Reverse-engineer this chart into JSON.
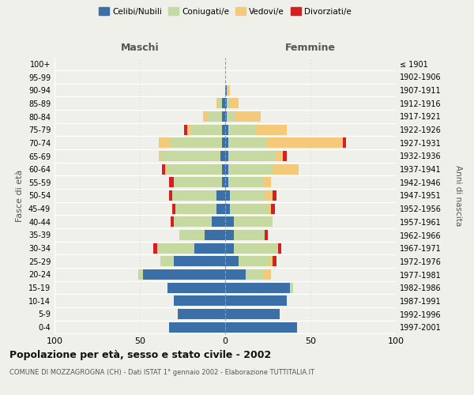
{
  "age_groups": [
    "100+",
    "95-99",
    "90-94",
    "85-89",
    "80-84",
    "75-79",
    "70-74",
    "65-69",
    "60-64",
    "55-59",
    "50-54",
    "45-49",
    "40-44",
    "35-39",
    "30-34",
    "25-29",
    "20-24",
    "15-19",
    "10-14",
    "5-9",
    "0-4"
  ],
  "birth_years": [
    "≤ 1901",
    "1902-1906",
    "1907-1911",
    "1912-1916",
    "1917-1921",
    "1922-1926",
    "1927-1931",
    "1932-1936",
    "1937-1941",
    "1942-1946",
    "1947-1951",
    "1952-1956",
    "1957-1961",
    "1962-1966",
    "1967-1971",
    "1972-1976",
    "1977-1981",
    "1982-1986",
    "1987-1991",
    "1992-1996",
    "1997-2001"
  ],
  "maschi": {
    "celibi": [
      0,
      0,
      0,
      2,
      2,
      2,
      2,
      3,
      2,
      2,
      5,
      5,
      8,
      12,
      18,
      30,
      48,
      34,
      30,
      28,
      33
    ],
    "coniugati": [
      0,
      0,
      0,
      2,
      8,
      18,
      30,
      35,
      32,
      28,
      26,
      24,
      22,
      15,
      22,
      8,
      3,
      0,
      0,
      0,
      0
    ],
    "vedovi": [
      0,
      0,
      0,
      1,
      3,
      2,
      7,
      1,
      1,
      0,
      0,
      0,
      0,
      0,
      0,
      0,
      0,
      0,
      0,
      0,
      0
    ],
    "divorziati": [
      0,
      0,
      0,
      0,
      0,
      2,
      0,
      0,
      2,
      3,
      2,
      2,
      2,
      0,
      2,
      0,
      0,
      0,
      0,
      0,
      0
    ]
  },
  "femmine": {
    "nubili": [
      0,
      0,
      1,
      1,
      1,
      2,
      2,
      2,
      2,
      2,
      3,
      3,
      5,
      5,
      5,
      8,
      12,
      38,
      36,
      32,
      42
    ],
    "coniugate": [
      0,
      0,
      0,
      2,
      5,
      16,
      22,
      28,
      26,
      20,
      20,
      22,
      23,
      18,
      26,
      18,
      10,
      2,
      0,
      0,
      0
    ],
    "vedove": [
      0,
      0,
      2,
      5,
      15,
      18,
      45,
      4,
      15,
      5,
      5,
      2,
      0,
      0,
      0,
      2,
      5,
      0,
      0,
      0,
      0
    ],
    "divorziate": [
      0,
      0,
      0,
      0,
      0,
      0,
      2,
      2,
      0,
      0,
      2,
      2,
      0,
      2,
      2,
      2,
      0,
      0,
      0,
      0,
      0
    ]
  },
  "colors": {
    "celibi_nubili": "#3a6fa8",
    "coniugati_e": "#c5d9a0",
    "vedovi_e": "#f5c97a",
    "divorziati_e": "#d42020"
  },
  "xlim": 100,
  "title": "Popolazione per età, sesso e stato civile - 2002",
  "subtitle": "COMUNE DI MOZZAGROGNA (CH) - Dati ISTAT 1° gennaio 2002 - Elaborazione TUTTITALIA.IT",
  "ylabel_left": "Fasce di età",
  "ylabel_right": "Anni di nascita",
  "xlabel_left": "Maschi",
  "xlabel_right": "Femmine",
  "legend_labels": [
    "Celibi/Nubili",
    "Coniugati/e",
    "Vedovi/e",
    "Divorziati/e"
  ],
  "background_color": "#f0f0eb"
}
